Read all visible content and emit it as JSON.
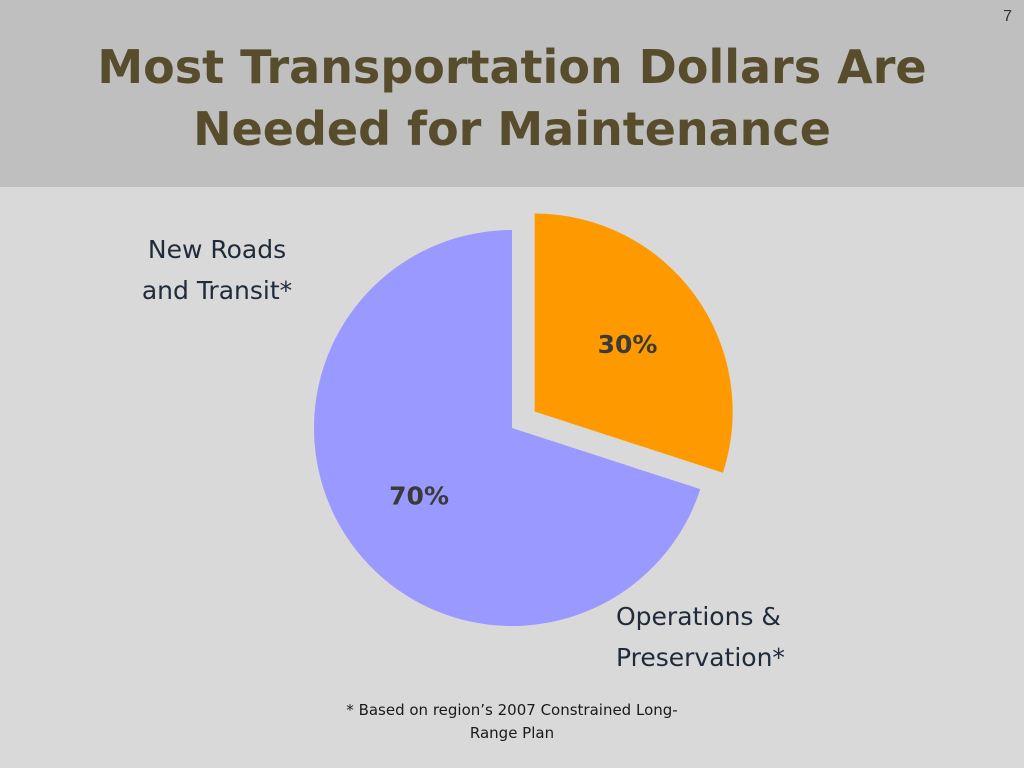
{
  "slide": {
    "page_number": "7",
    "title_line1": "Most Transportation Dollars Are",
    "title_line2": "Needed for Maintenance",
    "footnote_line1": "* Based on region’s 2007 Constrained Long-",
    "footnote_line2": "Range Plan"
  },
  "chart_data": {
    "type": "pie",
    "slices": [
      {
        "label_line1": "New Roads",
        "label_line2": "and Transit*",
        "value": 30,
        "value_label": "30%",
        "color": "#ff9900",
        "exploded": true
      },
      {
        "label_line1": "Operations &",
        "label_line2": "Preservation*",
        "value": 70,
        "value_label": "70%",
        "color": "#9999ff",
        "exploded": false
      }
    ]
  },
  "colors": {
    "title": "#574c2b",
    "title_bar": "#bfbfbf",
    "background": "#d9d9d9"
  }
}
